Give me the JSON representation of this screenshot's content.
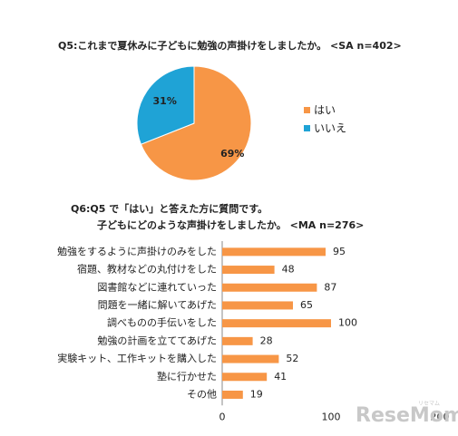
{
  "chart_data": [
    {
      "type": "pie",
      "title": "Q5:これまで夏休みに子どもに勉強の声掛けをしましたか。 <SA n=402>",
      "slices": [
        {
          "label": "はい",
          "value": 69,
          "display": "69%",
          "color": "#F79646"
        },
        {
          "label": "いいえ",
          "value": 31,
          "display": "31%",
          "color": "#1FA3D6"
        }
      ],
      "legend": [
        "はい",
        "いいえ"
      ],
      "legend_position": "right"
    },
    {
      "type": "bar",
      "orientation": "horizontal",
      "title_line1": "Q6:Q5 で「はい」と答えた方に質問です。",
      "title_line2": "子どもにどのような声掛けをしましたか。 <MA n=276>",
      "categories": [
        "勉強をするように声掛けのみをした",
        "宿題、教材などの丸付けをした",
        "図書館などに連れていった",
        "問題を一緒に解いてあげた",
        "調べものの手伝いをした",
        "勉強の計画を立ててあげた",
        "実験キット、工作キットを購入した",
        "塾に行かせた",
        "その他"
      ],
      "values": [
        95,
        48,
        87,
        65,
        100,
        28,
        52,
        41,
        19
      ],
      "xlim": [
        0,
        200
      ],
      "xticks": [
        "0",
        "100",
        "200"
      ],
      "bar_color": "#F79646",
      "grid": false
    }
  ],
  "watermark": "ReseMom",
  "watermark_small": "リセマム"
}
